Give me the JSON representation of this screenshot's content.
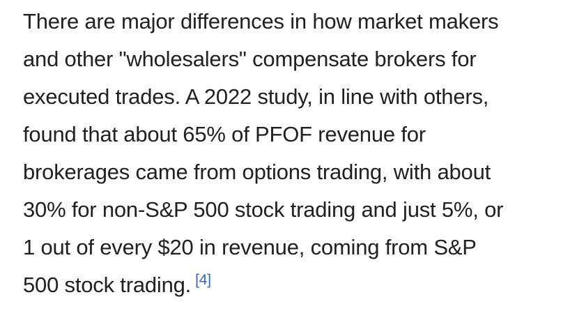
{
  "paragraph": {
    "lines": [
      "There are major differences in how market makers",
      "and other \"wholesalers\" compensate brokers for",
      "executed trades. A 2022 study, in line with others,",
      "found that about 65% of PFOF revenue for",
      "brokerages came from options trading, with about",
      "30% for non-S&P 500 stock trading and just 5%, or",
      "1 out of every $20 in revenue, coming from S&P",
      "500 stock trading."
    ],
    "citation": "[4]"
  },
  "colors": {
    "text": "#202122",
    "link": "#3366cc",
    "background": "#ffffff"
  }
}
